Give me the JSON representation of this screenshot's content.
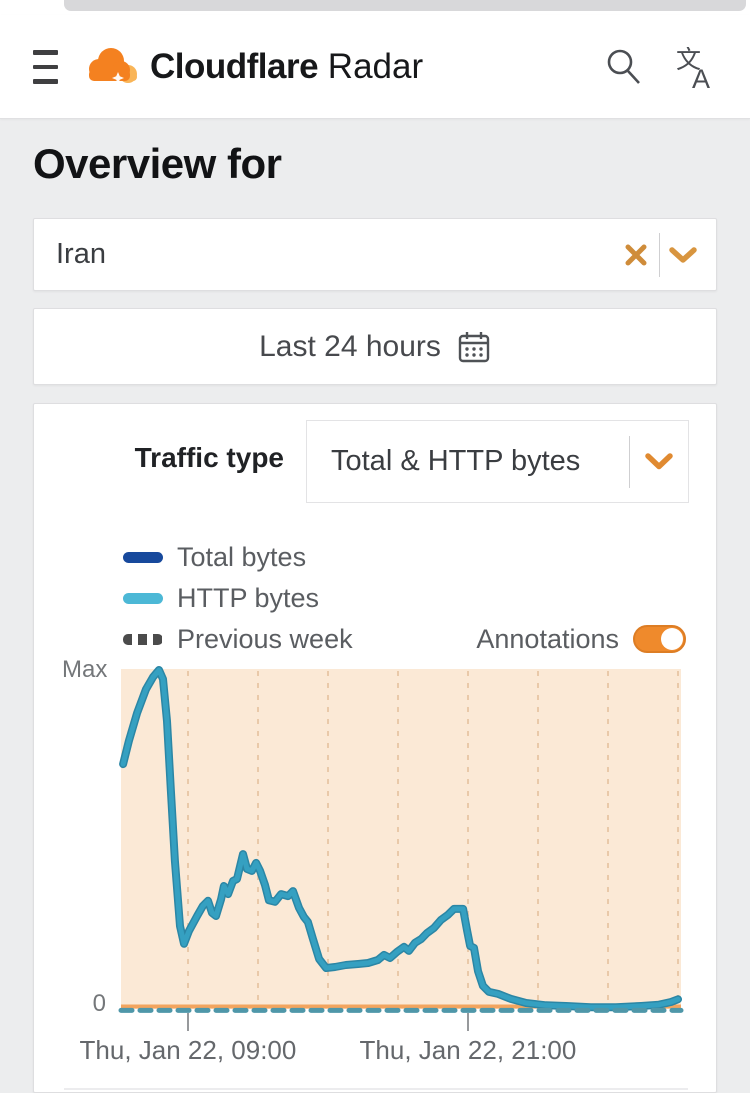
{
  "colors": {
    "accent_orange": "#f6821f",
    "toggle_on": "#ef8a2c",
    "selector_icon_orange": "#cf8c3a",
    "chevron_orange": "#e08a31"
  },
  "header": {
    "brand_bold": "Cloudflare",
    "brand_regular": " Radar",
    "icons": [
      "menu",
      "cloudflare-logo",
      "search",
      "translate"
    ]
  },
  "page": {
    "heading": "Overview for"
  },
  "location_selector": {
    "value": "Iran",
    "clear_icon": "x-close",
    "expand_icon": "chevron-down"
  },
  "time_range": {
    "label": "Last 24 hours",
    "icon": "calendar"
  },
  "traffic_panel": {
    "label": "Traffic type",
    "selected": "Total & HTTP bytes",
    "legend": [
      {
        "name": "Total bytes",
        "color": "#17499c",
        "style": "solid"
      },
      {
        "name": "HTTP bytes",
        "color": "#4cb8d6",
        "style": "solid"
      },
      {
        "name": "Previous week",
        "color": "#4b4b4b",
        "style": "dashed"
      }
    ],
    "annotations_label": "Annotations",
    "annotations_on": true
  },
  "chart_data": {
    "type": "line",
    "title": "",
    "xlabel": "",
    "ylabel": "",
    "y_max_label": "Max",
    "y_zero_label": "0",
    "ylim": [
      "0",
      "Max"
    ],
    "x_range_hours": 24,
    "x_window": "Thu Jan 22 ~06:00 to Fri Jan 23 ~06:00",
    "grid": "vertical-dashed",
    "gridline_hours": [
      2.87,
      5.87,
      8.87,
      11.87,
      14.87,
      17.87,
      20.87,
      23.87
    ],
    "x_ticks": [
      {
        "hour": 2.87,
        "label": "Thu, Jan 22, 09:00"
      },
      {
        "hour": 14.87,
        "label": "Thu, Jan 22, 21:00"
      }
    ],
    "plot_bg": "#fbe9d6",
    "grid_color": "#e9c9a9",
    "axis_color": "#f2a55f",
    "series": [
      {
        "name": "HTTP bytes",
        "style": "solid",
        "color": "#35a0c1",
        "edge_color": "#2b86a5",
        "points": [
          [
            0.09,
            0.72
          ],
          [
            0.34,
            0.789
          ],
          [
            0.69,
            0.872
          ],
          [
            1.07,
            0.943
          ],
          [
            1.37,
            0.979
          ],
          [
            1.63,
            1.0
          ],
          [
            1.8,
            0.973
          ],
          [
            1.97,
            0.848
          ],
          [
            2.14,
            0.64
          ],
          [
            2.31,
            0.432
          ],
          [
            2.53,
            0.238
          ],
          [
            2.7,
            0.185
          ],
          [
            2.91,
            0.223
          ],
          [
            3.26,
            0.268
          ],
          [
            3.51,
            0.298
          ],
          [
            3.73,
            0.313
          ],
          [
            3.9,
            0.277
          ],
          [
            4.07,
            0.268
          ],
          [
            4.29,
            0.318
          ],
          [
            4.41,
            0.357
          ],
          [
            4.59,
            0.333
          ],
          [
            4.8,
            0.372
          ],
          [
            4.97,
            0.378
          ],
          [
            5.23,
            0.452
          ],
          [
            5.4,
            0.408
          ],
          [
            5.61,
            0.402
          ],
          [
            5.79,
            0.426
          ],
          [
            5.96,
            0.402
          ],
          [
            6.17,
            0.36
          ],
          [
            6.34,
            0.315
          ],
          [
            6.6,
            0.31
          ],
          [
            6.86,
            0.333
          ],
          [
            7.16,
            0.327
          ],
          [
            7.37,
            0.342
          ],
          [
            7.63,
            0.292
          ],
          [
            7.84,
            0.265
          ],
          [
            8.01,
            0.25
          ],
          [
            8.23,
            0.199
          ],
          [
            8.49,
            0.14
          ],
          [
            8.79,
            0.113
          ],
          [
            9.17,
            0.116
          ],
          [
            9.64,
            0.122
          ],
          [
            10.16,
            0.125
          ],
          [
            10.59,
            0.128
          ],
          [
            11.01,
            0.137
          ],
          [
            11.27,
            0.152
          ],
          [
            11.53,
            0.143
          ],
          [
            11.83,
            0.161
          ],
          [
            12.13,
            0.176
          ],
          [
            12.34,
            0.164
          ],
          [
            12.6,
            0.188
          ],
          [
            12.86,
            0.199
          ],
          [
            13.11,
            0.217
          ],
          [
            13.41,
            0.232
          ],
          [
            13.71,
            0.256
          ],
          [
            14.01,
            0.271
          ],
          [
            14.27,
            0.289
          ],
          [
            14.66,
            0.289
          ],
          [
            14.83,
            0.226
          ],
          [
            14.96,
            0.179
          ],
          [
            15.13,
            0.173
          ],
          [
            15.3,
            0.104
          ],
          [
            15.51,
            0.06
          ],
          [
            15.77,
            0.042
          ],
          [
            16.16,
            0.036
          ],
          [
            16.71,
            0.021
          ],
          [
            17.36,
            0.009
          ],
          [
            18.21,
            0.002
          ],
          [
            19.07,
            0.0
          ],
          [
            20.14,
            -0.004
          ],
          [
            21.21,
            -0.004
          ],
          [
            22.29,
            0.0
          ],
          [
            23.06,
            0.004
          ],
          [
            23.57,
            0.012
          ],
          [
            23.87,
            0.02
          ]
        ]
      },
      {
        "name": "Previous week",
        "style": "dashed",
        "color": "#4f97a9",
        "points": [
          [
            0,
            -0.013
          ],
          [
            24,
            -0.013
          ]
        ]
      }
    ]
  }
}
